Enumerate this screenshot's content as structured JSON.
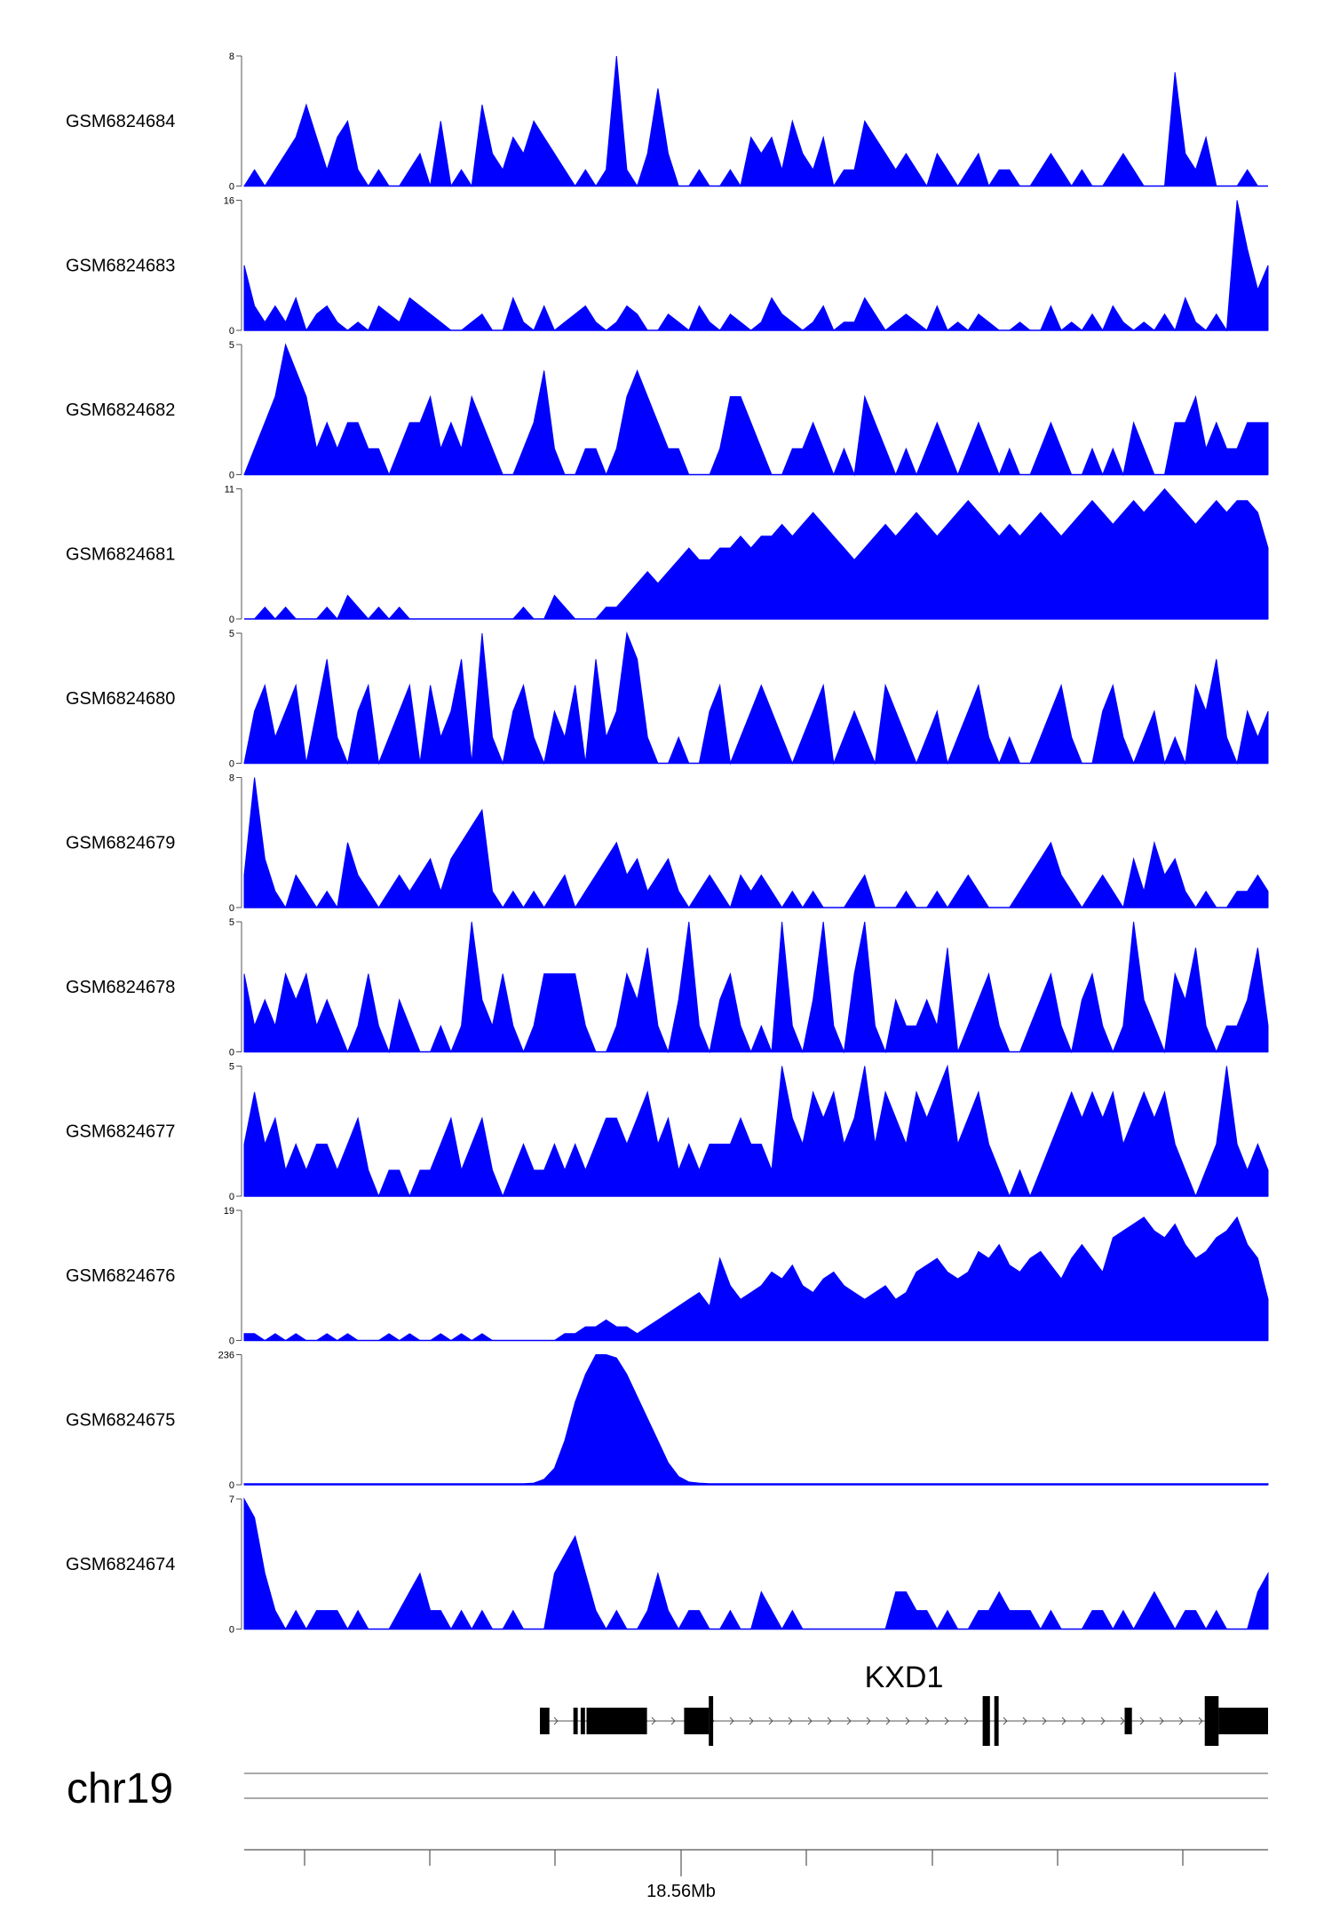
{
  "chart_data": {
    "type": "area",
    "title": "",
    "x_axis": {
      "chromosome": "chr19",
      "tick_label": "18.56Mb",
      "ticks": [
        0,
        1,
        2,
        3,
        4,
        5,
        6,
        7
      ]
    },
    "fill_color": "#0000ff",
    "series": [
      {
        "name": "GSM6824684",
        "ymax": "8",
        "ymin": "0",
        "values": [
          0,
          1,
          0,
          1,
          2,
          3,
          5,
          3,
          1,
          3,
          4,
          1,
          0,
          1,
          0,
          0,
          1,
          2,
          0,
          4,
          0,
          1,
          0,
          5,
          2,
          1,
          3,
          2,
          4,
          3,
          2,
          1,
          0,
          1,
          0,
          1,
          8,
          1,
          0,
          2,
          6,
          2,
          0,
          0,
          1,
          0,
          0,
          1,
          0,
          3,
          2,
          3,
          1,
          4,
          2,
          1,
          3,
          0,
          1,
          1,
          4,
          3,
          2,
          1,
          2,
          1,
          0,
          2,
          1,
          0,
          1,
          2,
          0,
          1,
          1,
          0,
          0,
          1,
          2,
          1,
          0,
          1,
          0,
          0,
          1,
          2,
          1,
          0,
          0,
          0,
          7,
          2,
          1,
          3,
          0,
          0,
          0,
          1,
          0,
          0
        ]
      },
      {
        "name": "GSM6824683",
        "ymax": "16",
        "ymin": "0",
        "values": [
          8,
          3,
          1,
          3,
          1,
          4,
          0,
          2,
          3,
          1,
          0,
          1,
          0,
          3,
          2,
          1,
          4,
          3,
          2,
          1,
          0,
          0,
          1,
          2,
          0,
          0,
          4,
          1,
          0,
          3,
          0,
          1,
          2,
          3,
          1,
          0,
          1,
          3,
          2,
          0,
          0,
          2,
          1,
          0,
          3,
          1,
          0,
          2,
          1,
          0,
          1,
          4,
          2,
          1,
          0,
          1,
          3,
          0,
          1,
          1,
          4,
          2,
          0,
          1,
          2,
          1,
          0,
          3,
          0,
          1,
          0,
          2,
          1,
          0,
          0,
          1,
          0,
          0,
          3,
          0,
          1,
          0,
          2,
          0,
          3,
          1,
          0,
          1,
          0,
          2,
          0,
          4,
          1,
          0,
          2,
          0,
          16,
          10,
          5,
          8
        ]
      },
      {
        "name": "GSM6824682",
        "ymax": "5",
        "ymin": "0",
        "values": [
          0,
          1,
          2,
          3,
          5,
          4,
          3,
          1,
          2,
          1,
          2,
          2,
          1,
          1,
          0,
          1,
          2,
          2,
          3,
          1,
          2,
          1,
          3,
          2,
          1,
          0,
          0,
          1,
          2,
          4,
          1,
          0,
          0,
          1,
          1,
          0,
          1,
          3,
          4,
          3,
          2,
          1,
          1,
          0,
          0,
          0,
          1,
          3,
          3,
          2,
          1,
          0,
          0,
          1,
          1,
          2,
          1,
          0,
          1,
          0,
          3,
          2,
          1,
          0,
          1,
          0,
          1,
          2,
          1,
          0,
          1,
          2,
          1,
          0,
          1,
          0,
          0,
          1,
          2,
          1,
          0,
          0,
          1,
          0,
          1,
          0,
          2,
          1,
          0,
          0,
          2,
          2,
          3,
          1,
          2,
          1,
          1,
          2,
          2,
          2
        ]
      },
      {
        "name": "GSM6824681",
        "ymax": "11",
        "ymin": "0",
        "values": [
          0,
          0,
          1,
          0,
          1,
          0,
          0,
          0,
          1,
          0,
          2,
          1,
          0,
          1,
          0,
          1,
          0,
          0,
          0,
          0,
          0,
          0,
          0,
          0,
          0,
          0,
          0,
          1,
          0,
          0,
          2,
          1,
          0,
          0,
          0,
          1,
          1,
          2,
          3,
          4,
          3,
          4,
          5,
          6,
          5,
          5,
          6,
          6,
          7,
          6,
          7,
          7,
          8,
          7,
          8,
          9,
          8,
          7,
          6,
          5,
          6,
          7,
          8,
          7,
          8,
          9,
          8,
          7,
          8,
          9,
          10,
          9,
          8,
          7,
          8,
          7,
          8,
          9,
          8,
          7,
          8,
          9,
          10,
          9,
          8,
          9,
          10,
          9,
          10,
          11,
          10,
          9,
          8,
          9,
          10,
          9,
          10,
          10,
          9,
          6
        ]
      },
      {
        "name": "GSM6824680",
        "ymax": "5",
        "ymin": "0",
        "values": [
          0,
          2,
          3,
          1,
          2,
          3,
          0,
          2,
          4,
          1,
          0,
          2,
          3,
          0,
          1,
          2,
          3,
          0,
          3,
          1,
          2,
          4,
          0,
          5,
          1,
          0,
          2,
          3,
          1,
          0,
          2,
          1,
          3,
          0,
          4,
          1,
          2,
          5,
          4,
          1,
          0,
          0,
          1,
          0,
          0,
          2,
          3,
          0,
          1,
          2,
          3,
          2,
          1,
          0,
          1,
          2,
          3,
          0,
          1,
          2,
          1,
          0,
          3,
          2,
          1,
          0,
          1,
          2,
          0,
          1,
          2,
          3,
          1,
          0,
          1,
          0,
          0,
          1,
          2,
          3,
          1,
          0,
          0,
          2,
          3,
          1,
          0,
          1,
          2,
          0,
          1,
          0,
          3,
          2,
          4,
          1,
          0,
          2,
          1,
          2
        ]
      },
      {
        "name": "GSM6824679",
        "ymax": "8",
        "ymin": "0",
        "values": [
          2,
          8,
          3,
          1,
          0,
          2,
          1,
          0,
          1,
          0,
          4,
          2,
          1,
          0,
          1,
          2,
          1,
          2,
          3,
          1,
          3,
          4,
          5,
          6,
          1,
          0,
          1,
          0,
          1,
          0,
          1,
          2,
          0,
          1,
          2,
          3,
          4,
          2,
          3,
          1,
          2,
          3,
          1,
          0,
          1,
          2,
          1,
          0,
          2,
          1,
          2,
          1,
          0,
          1,
          0,
          1,
          0,
          0,
          0,
          1,
          2,
          0,
          0,
          0,
          1,
          0,
          0,
          1,
          0,
          1,
          2,
          1,
          0,
          0,
          0,
          1,
          2,
          3,
          4,
          2,
          1,
          0,
          1,
          2,
          1,
          0,
          3,
          1,
          4,
          2,
          3,
          1,
          0,
          1,
          0,
          0,
          1,
          1,
          2,
          1
        ]
      },
      {
        "name": "GSM6824678",
        "ymax": "5",
        "ymin": "0",
        "values": [
          3,
          1,
          2,
          1,
          3,
          2,
          3,
          1,
          2,
          1,
          0,
          1,
          3,
          1,
          0,
          2,
          1,
          0,
          0,
          1,
          0,
          1,
          5,
          2,
          1,
          3,
          1,
          0,
          1,
          3,
          3,
          3,
          3,
          1,
          0,
          0,
          1,
          3,
          2,
          4,
          1,
          0,
          2,
          5,
          1,
          0,
          2,
          3,
          1,
          0,
          1,
          0,
          5,
          1,
          0,
          2,
          5,
          1,
          0,
          3,
          5,
          1,
          0,
          2,
          1,
          1,
          2,
          1,
          4,
          0,
          1,
          2,
          3,
          1,
          0,
          0,
          1,
          2,
          3,
          1,
          0,
          2,
          3,
          1,
          0,
          1,
          5,
          2,
          1,
          0,
          3,
          2,
          4,
          1,
          0,
          1,
          1,
          2,
          4,
          1
        ]
      },
      {
        "name": "GSM6824677",
        "ymax": "5",
        "ymin": "0",
        "values": [
          2,
          4,
          2,
          3,
          1,
          2,
          1,
          2,
          2,
          1,
          2,
          3,
          1,
          0,
          1,
          1,
          0,
          1,
          1,
          2,
          3,
          1,
          2,
          3,
          1,
          0,
          1,
          2,
          1,
          1,
          2,
          1,
          2,
          1,
          2,
          3,
          3,
          2,
          3,
          4,
          2,
          3,
          1,
          2,
          1,
          2,
          2,
          2,
          3,
          2,
          2,
          1,
          5,
          3,
          2,
          4,
          3,
          4,
          2,
          3,
          5,
          2,
          4,
          3,
          2,
          4,
          3,
          4,
          5,
          2,
          3,
          4,
          2,
          1,
          0,
          1,
          0,
          1,
          2,
          3,
          4,
          3,
          4,
          3,
          4,
          2,
          3,
          4,
          3,
          4,
          2,
          1,
          0,
          1,
          2,
          5,
          2,
          1,
          2,
          1
        ]
      },
      {
        "name": "GSM6824676",
        "ymax": "19",
        "ymin": "0",
        "values": [
          1,
          1,
          0,
          1,
          0,
          1,
          0,
          0,
          1,
          0,
          1,
          0,
          0,
          0,
          1,
          0,
          1,
          0,
          0,
          1,
          0,
          1,
          0,
          1,
          0,
          0,
          0,
          0,
          0,
          0,
          0,
          1,
          1,
          2,
          2,
          3,
          2,
          2,
          1,
          2,
          3,
          4,
          5,
          6,
          7,
          5,
          12,
          8,
          6,
          7,
          8,
          10,
          9,
          11,
          8,
          7,
          9,
          10,
          8,
          7,
          6,
          7,
          8,
          6,
          7,
          10,
          11,
          12,
          10,
          9,
          10,
          13,
          12,
          14,
          11,
          10,
          12,
          13,
          11,
          9,
          12,
          14,
          12,
          10,
          15,
          16,
          17,
          18,
          16,
          15,
          17,
          14,
          12,
          13,
          15,
          16,
          18,
          14,
          12,
          6
        ]
      },
      {
        "name": "GSM6824675",
        "ymax": "236",
        "ymin": "0",
        "values": [
          2,
          2,
          2,
          2,
          2,
          2,
          2,
          2,
          2,
          2,
          2,
          2,
          2,
          2,
          2,
          2,
          2,
          2,
          2,
          2,
          2,
          2,
          2,
          2,
          2,
          2,
          2,
          2,
          3,
          10,
          30,
          80,
          150,
          200,
          236,
          236,
          230,
          200,
          160,
          120,
          80,
          40,
          15,
          5,
          3,
          2,
          2,
          2,
          2,
          2,
          2,
          2,
          2,
          2,
          2,
          2,
          2,
          2,
          2,
          2,
          2,
          2,
          2,
          2,
          2,
          2,
          2,
          2,
          2,
          2,
          2,
          2,
          2,
          2,
          2,
          2,
          2,
          2,
          2,
          2,
          2,
          2,
          2,
          2,
          2,
          2,
          2,
          2,
          2,
          2,
          2,
          2,
          2,
          2,
          2,
          2,
          2,
          2,
          2,
          2
        ]
      },
      {
        "name": "GSM6824674",
        "ymax": "7",
        "ymin": "0",
        "values": [
          7,
          6,
          3,
          1,
          0,
          1,
          0,
          1,
          1,
          1,
          0,
          1,
          0,
          0,
          0,
          1,
          2,
          3,
          1,
          1,
          0,
          1,
          0,
          1,
          0,
          0,
          1,
          0,
          0,
          0,
          3,
          4,
          5,
          3,
          1,
          0,
          1,
          0,
          0,
          1,
          3,
          1,
          0,
          1,
          1,
          0,
          0,
          1,
          0,
          0,
          2,
          1,
          0,
          1,
          0,
          0,
          0,
          0,
          0,
          0,
          0,
          0,
          0,
          2,
          2,
          1,
          1,
          0,
          1,
          0,
          0,
          1,
          1,
          2,
          1,
          1,
          1,
          0,
          1,
          0,
          0,
          0,
          1,
          1,
          0,
          1,
          0,
          1,
          2,
          1,
          0,
          1,
          1,
          0,
          1,
          0,
          0,
          0,
          2,
          3
        ]
      }
    ],
    "gene_track": {
      "gene": "KXD1",
      "exons": [
        {
          "start": 0.0,
          "end": 0.013
        },
        {
          "start": 0.046,
          "end": 0.052
        },
        {
          "start": 0.056,
          "end": 0.062
        },
        {
          "start": 0.064,
          "end": 0.147
        },
        {
          "start": 0.198,
          "end": 0.232
        },
        {
          "start": 0.232,
          "end": 0.238
        },
        {
          "start": 0.608,
          "end": 0.618
        },
        {
          "start": 0.624,
          "end": 0.63
        },
        {
          "start": 0.803,
          "end": 0.813
        },
        {
          "start": 0.913,
          "end": 0.932
        },
        {
          "start": 0.932,
          "end": 1.0
        }
      ],
      "strand": "+"
    }
  }
}
